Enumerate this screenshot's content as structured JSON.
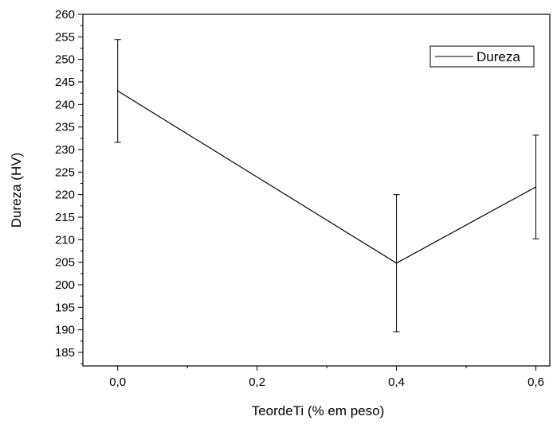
{
  "chart_data": {
    "type": "line",
    "xlabel": "TeordeTi (% em peso)",
    "ylabel": "Dureza (HV)",
    "xlim": [
      -0.05,
      0.62
    ],
    "ylim": [
      182,
      260
    ],
    "x_ticks": [
      0.0,
      0.2,
      0.4,
      0.6
    ],
    "x_tick_labels": [
      "0,0",
      "0,2",
      "0,4",
      "0,6"
    ],
    "y_ticks": [
      185,
      190,
      195,
      200,
      205,
      210,
      215,
      220,
      225,
      230,
      235,
      240,
      245,
      250,
      255,
      260
    ],
    "y_tick_labels": [
      "185",
      "190",
      "195",
      "200",
      "205",
      "210",
      "215",
      "220",
      "225",
      "230",
      "235",
      "240",
      "245",
      "250",
      "255",
      "260"
    ],
    "grid": false,
    "legend_position": "top-right",
    "series": [
      {
        "name": "Dureza",
        "color": "#000000",
        "x": [
          0.0,
          0.4,
          0.6
        ],
        "y": [
          243.0,
          204.8,
          221.7
        ],
        "error_low": [
          231.6,
          189.6,
          210.2
        ],
        "error_high": [
          254.4,
          220.0,
          233.2
        ]
      }
    ]
  }
}
